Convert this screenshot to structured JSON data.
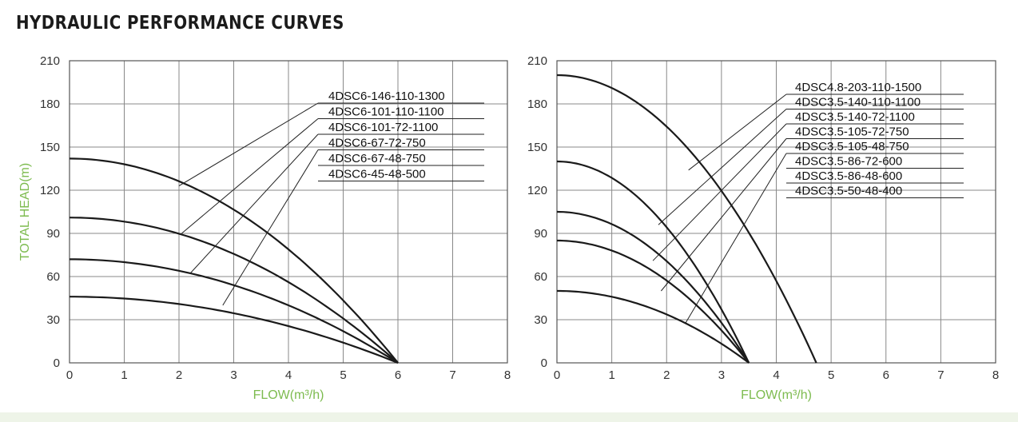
{
  "title": "HYDRAULIC PERFORMANCE CURVES",
  "colors": {
    "axis_label": "#7dbb4f",
    "grid": "#888888",
    "curve": "#1a1a1a"
  },
  "chart_data": [
    {
      "type": "line",
      "xlabel": "FLOW(m³/h)",
      "ylabel": "TOTAL HEAD(m)",
      "xlim": [
        0,
        8
      ],
      "ylim": [
        0,
        210
      ],
      "xticks": [
        0,
        1,
        2,
        3,
        4,
        5,
        6,
        7,
        8
      ],
      "yticks": [
        0,
        30,
        60,
        90,
        120,
        150,
        180,
        210
      ],
      "grid": true,
      "series": [
        {
          "name": "4DSC6-146-110-1300",
          "shutoff": 142,
          "x_end": 6.0,
          "label_point": [
            2.0,
            123
          ]
        },
        {
          "name": "4DSC6-101-110-1100",
          "shutoff": 101,
          "x_end": 6.0,
          "label_point": [
            2.05,
            90
          ]
        },
        {
          "name": "4DSC6-101-72-1100",
          "shutoff": 72,
          "x_end": 6.0,
          "label_point": [
            2.2,
            62
          ]
        },
        {
          "name": "4DSC6-67-72-750",
          "shutoff": 46,
          "x_end": 6.0,
          "label_point": [
            2.8,
            40
          ]
        },
        {
          "name": "4DSC6-67-48-750",
          "label_point": null
        },
        {
          "name": "4DSC6-45-48-500",
          "label_point": null
        }
      ]
    },
    {
      "type": "line",
      "xlabel": "FLOW(m³/h)",
      "ylabel": "",
      "xlim": [
        0,
        8
      ],
      "ylim": [
        0,
        210
      ],
      "xticks": [
        0,
        1,
        2,
        3,
        4,
        5,
        6,
        7,
        8
      ],
      "yticks": [
        0,
        30,
        60,
        90,
        120,
        150,
        180,
        210
      ],
      "grid": true,
      "series": [
        {
          "name": "4DSC4.8-203-110-1500",
          "shutoff": 200,
          "x_end": 4.73,
          "label_point": [
            2.4,
            134
          ]
        },
        {
          "name": "4DSC3.5-140-110-1100",
          "shutoff": 140,
          "x_end": 3.5,
          "label_point": [
            1.85,
            96
          ]
        },
        {
          "name": "4DSC3.5-140-72-1100",
          "shutoff": 105,
          "x_end": 3.5,
          "label_point": [
            1.75,
            71
          ]
        },
        {
          "name": "4DSC3.5-105-72-750",
          "shutoff": 85,
          "x_end": 3.5,
          "label_point": [
            1.9,
            50
          ]
        },
        {
          "name": "4DSC3.5-105-48-750",
          "shutoff": 50,
          "x_end": 3.5,
          "label_point": [
            2.35,
            28
          ]
        },
        {
          "name": "4DSC3.5-86-72-600",
          "label_point": null
        },
        {
          "name": "4DSC3.5-86-48-600",
          "label_point": null
        },
        {
          "name": "4DSC3.5-50-48-400",
          "label_point": null
        }
      ]
    }
  ]
}
